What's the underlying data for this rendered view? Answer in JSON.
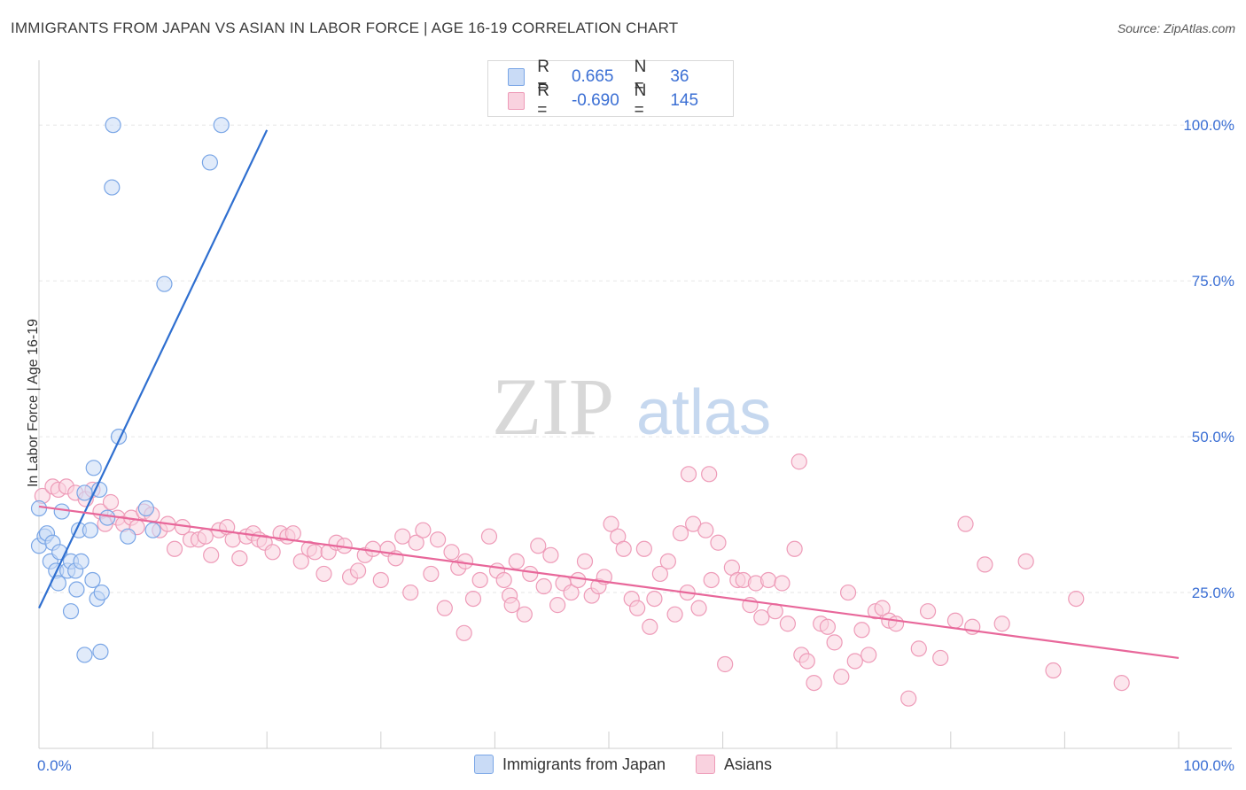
{
  "title": "IMMIGRANTS FROM JAPAN VS ASIAN IN LABOR FORCE | AGE 16-19 CORRELATION CHART",
  "source": "Source: ZipAtlas.com",
  "watermark": {
    "zip": "ZIP",
    "atlas": "atlas"
  },
  "colors": {
    "blue": "#7aa6e6",
    "blue_fill": "#c9dbf6",
    "blue_line": "#2f6fd0",
    "pink": "#ee9bb8",
    "pink_fill": "#f9d2df",
    "pink_line": "#e8679a",
    "tick_text": "#3b6fd4"
  },
  "legend": [
    {
      "r_label": "R =",
      "r_value": "0.665",
      "n_label": "N =",
      "n_value": "36"
    },
    {
      "r_label": "R =",
      "r_value": "-0.690",
      "n_label": "N =",
      "n_value": "145"
    }
  ],
  "chart_data": {
    "type": "scatter",
    "title": "IMMIGRANTS FROM JAPAN VS ASIAN IN LABOR FORCE | AGE 16-19 CORRELATION CHART",
    "xlabel": "",
    "ylabel": "In Labor Force | Age 16-19",
    "xlim": [
      0,
      100
    ],
    "ylim": [
      0,
      100
    ],
    "x_tick_labels": [
      "0.0%",
      "100.0%"
    ],
    "y_tick_labels": [
      "25.0%",
      "50.0%",
      "75.0%",
      "100.0%"
    ],
    "grid": true,
    "series": [
      {
        "name": "Immigrants from Japan",
        "color": "#7aa6e6",
        "r": 0.665,
        "n": 36,
        "trend": [
          [
            0,
            22.5
          ],
          [
            20,
            99.2
          ]
        ],
        "points": [
          [
            0.0,
            38.5
          ],
          [
            0.0,
            32.5
          ],
          [
            0.5,
            34
          ],
          [
            0.7,
            34.5
          ],
          [
            1.0,
            30
          ],
          [
            1.2,
            33
          ],
          [
            1.5,
            28.5
          ],
          [
            1.7,
            26.5
          ],
          [
            1.8,
            31.5
          ],
          [
            2.0,
            38
          ],
          [
            2.5,
            28.5
          ],
          [
            2.8,
            30
          ],
          [
            2.8,
            22
          ],
          [
            3.2,
            28.5
          ],
          [
            3.3,
            25.5
          ],
          [
            3.5,
            35
          ],
          [
            3.7,
            30
          ],
          [
            4.0,
            41
          ],
          [
            4.5,
            35
          ],
          [
            4.7,
            27
          ],
          [
            4.8,
            45
          ],
          [
            5.1,
            24
          ],
          [
            5.3,
            41.5
          ],
          [
            5.4,
            15.5
          ],
          [
            5.5,
            25
          ],
          [
            6.0,
            37
          ],
          [
            6.4,
            90
          ],
          [
            6.5,
            100
          ],
          [
            7.8,
            34
          ],
          [
            9.4,
            38.5
          ],
          [
            10.0,
            35
          ],
          [
            11.0,
            74.5
          ],
          [
            15.0,
            94
          ],
          [
            16.0,
            100
          ],
          [
            7.0,
            50
          ],
          [
            4.0,
            15
          ]
        ]
      },
      {
        "name": "Asians",
        "color": "#ee9bb8",
        "r": -0.69,
        "n": 145,
        "trend": [
          [
            0,
            38.8
          ],
          [
            100,
            14.5
          ]
        ],
        "points": [
          [
            0.3,
            40.5
          ],
          [
            1.2,
            42
          ],
          [
            1.7,
            41.5
          ],
          [
            2.4,
            42
          ],
          [
            3.2,
            41
          ],
          [
            4.1,
            40
          ],
          [
            4.7,
            41.5
          ],
          [
            5.4,
            38
          ],
          [
            5.8,
            36
          ],
          [
            6.3,
            39.5
          ],
          [
            6.9,
            37
          ],
          [
            7.4,
            36
          ],
          [
            8.1,
            37
          ],
          [
            8.6,
            35.5
          ],
          [
            9.2,
            38
          ],
          [
            9.9,
            37.5
          ],
          [
            10.6,
            35
          ],
          [
            11.3,
            36
          ],
          [
            11.9,
            32
          ],
          [
            12.6,
            35.5
          ],
          [
            13.3,
            33.5
          ],
          [
            14.0,
            33.5
          ],
          [
            14.6,
            34
          ],
          [
            15.1,
            31
          ],
          [
            15.8,
            35
          ],
          [
            16.5,
            35.5
          ],
          [
            17.0,
            33.5
          ],
          [
            17.6,
            30.5
          ],
          [
            18.2,
            34
          ],
          [
            18.8,
            34.5
          ],
          [
            19.3,
            33.5
          ],
          [
            19.8,
            33
          ],
          [
            20.5,
            31.5
          ],
          [
            21.2,
            34.5
          ],
          [
            21.8,
            34
          ],
          [
            22.3,
            34.5
          ],
          [
            23.0,
            30
          ],
          [
            23.7,
            32
          ],
          [
            24.2,
            31.5
          ],
          [
            25.0,
            28
          ],
          [
            25.4,
            31.5
          ],
          [
            26.1,
            33
          ],
          [
            26.8,
            32.5
          ],
          [
            27.3,
            27.5
          ],
          [
            28.0,
            28.5
          ],
          [
            28.6,
            31
          ],
          [
            29.3,
            32
          ],
          [
            30.0,
            27
          ],
          [
            30.6,
            32
          ],
          [
            31.3,
            30.5
          ],
          [
            31.9,
            34
          ],
          [
            32.6,
            25
          ],
          [
            33.1,
            33
          ],
          [
            33.7,
            35
          ],
          [
            34.4,
            28
          ],
          [
            35.0,
            33.5
          ],
          [
            35.6,
            22.5
          ],
          [
            36.2,
            31.5
          ],
          [
            36.8,
            29
          ],
          [
            37.4,
            30
          ],
          [
            38.1,
            24
          ],
          [
            38.7,
            27
          ],
          [
            39.5,
            34
          ],
          [
            40.2,
            28.5
          ],
          [
            40.8,
            27
          ],
          [
            41.3,
            24.5
          ],
          [
            41.9,
            30
          ],
          [
            42.6,
            21.5
          ],
          [
            43.1,
            28
          ],
          [
            43.8,
            32.5
          ],
          [
            44.3,
            26
          ],
          [
            44.9,
            31
          ],
          [
            45.5,
            23
          ],
          [
            46.0,
            26.5
          ],
          [
            46.7,
            25
          ],
          [
            47.3,
            27
          ],
          [
            47.9,
            30
          ],
          [
            48.5,
            24.5
          ],
          [
            49.1,
            26
          ],
          [
            49.6,
            27.5
          ],
          [
            50.2,
            36
          ],
          [
            50.8,
            34
          ],
          [
            51.3,
            32
          ],
          [
            52.0,
            24
          ],
          [
            52.5,
            22.5
          ],
          [
            53.1,
            32
          ],
          [
            53.6,
            19.5
          ],
          [
            54.0,
            24
          ],
          [
            54.5,
            28
          ],
          [
            55.2,
            30
          ],
          [
            55.8,
            21.5
          ],
          [
            56.3,
            34.5
          ],
          [
            56.9,
            25
          ],
          [
            57.4,
            36
          ],
          [
            57.9,
            22.5
          ],
          [
            58.5,
            35
          ],
          [
            59.0,
            27
          ],
          [
            59.6,
            33
          ],
          [
            60.2,
            13.5
          ],
          [
            60.8,
            29
          ],
          [
            61.3,
            27
          ],
          [
            61.8,
            27
          ],
          [
            62.4,
            23
          ],
          [
            62.9,
            26.5
          ],
          [
            63.4,
            21
          ],
          [
            64.0,
            27
          ],
          [
            64.6,
            22
          ],
          [
            65.2,
            26.5
          ],
          [
            65.7,
            20
          ],
          [
            66.3,
            32
          ],
          [
            66.9,
            15
          ],
          [
            67.4,
            14
          ],
          [
            68.0,
            10.5
          ],
          [
            68.6,
            20
          ],
          [
            69.2,
            19.5
          ],
          [
            69.8,
            17
          ],
          [
            70.4,
            11.5
          ],
          [
            71.0,
            25
          ],
          [
            71.6,
            14
          ],
          [
            72.2,
            19
          ],
          [
            72.8,
            15
          ],
          [
            73.4,
            22
          ],
          [
            74.0,
            22.5
          ],
          [
            74.6,
            20.5
          ],
          [
            75.2,
            20
          ],
          [
            76.3,
            8
          ],
          [
            77.2,
            16
          ],
          [
            78.0,
            22
          ],
          [
            79.1,
            14.5
          ],
          [
            80.4,
            20.5
          ],
          [
            81.3,
            36
          ],
          [
            81.9,
            19.5
          ],
          [
            83.0,
            29.5
          ],
          [
            84.5,
            20
          ],
          [
            86.6,
            30
          ],
          [
            89.0,
            12.5
          ],
          [
            91.0,
            24
          ],
          [
            95.0,
            10.5
          ],
          [
            37.3,
            18.5
          ],
          [
            41.5,
            23
          ],
          [
            57.0,
            44
          ],
          [
            58.8,
            44
          ],
          [
            66.7,
            46
          ]
        ]
      }
    ]
  }
}
